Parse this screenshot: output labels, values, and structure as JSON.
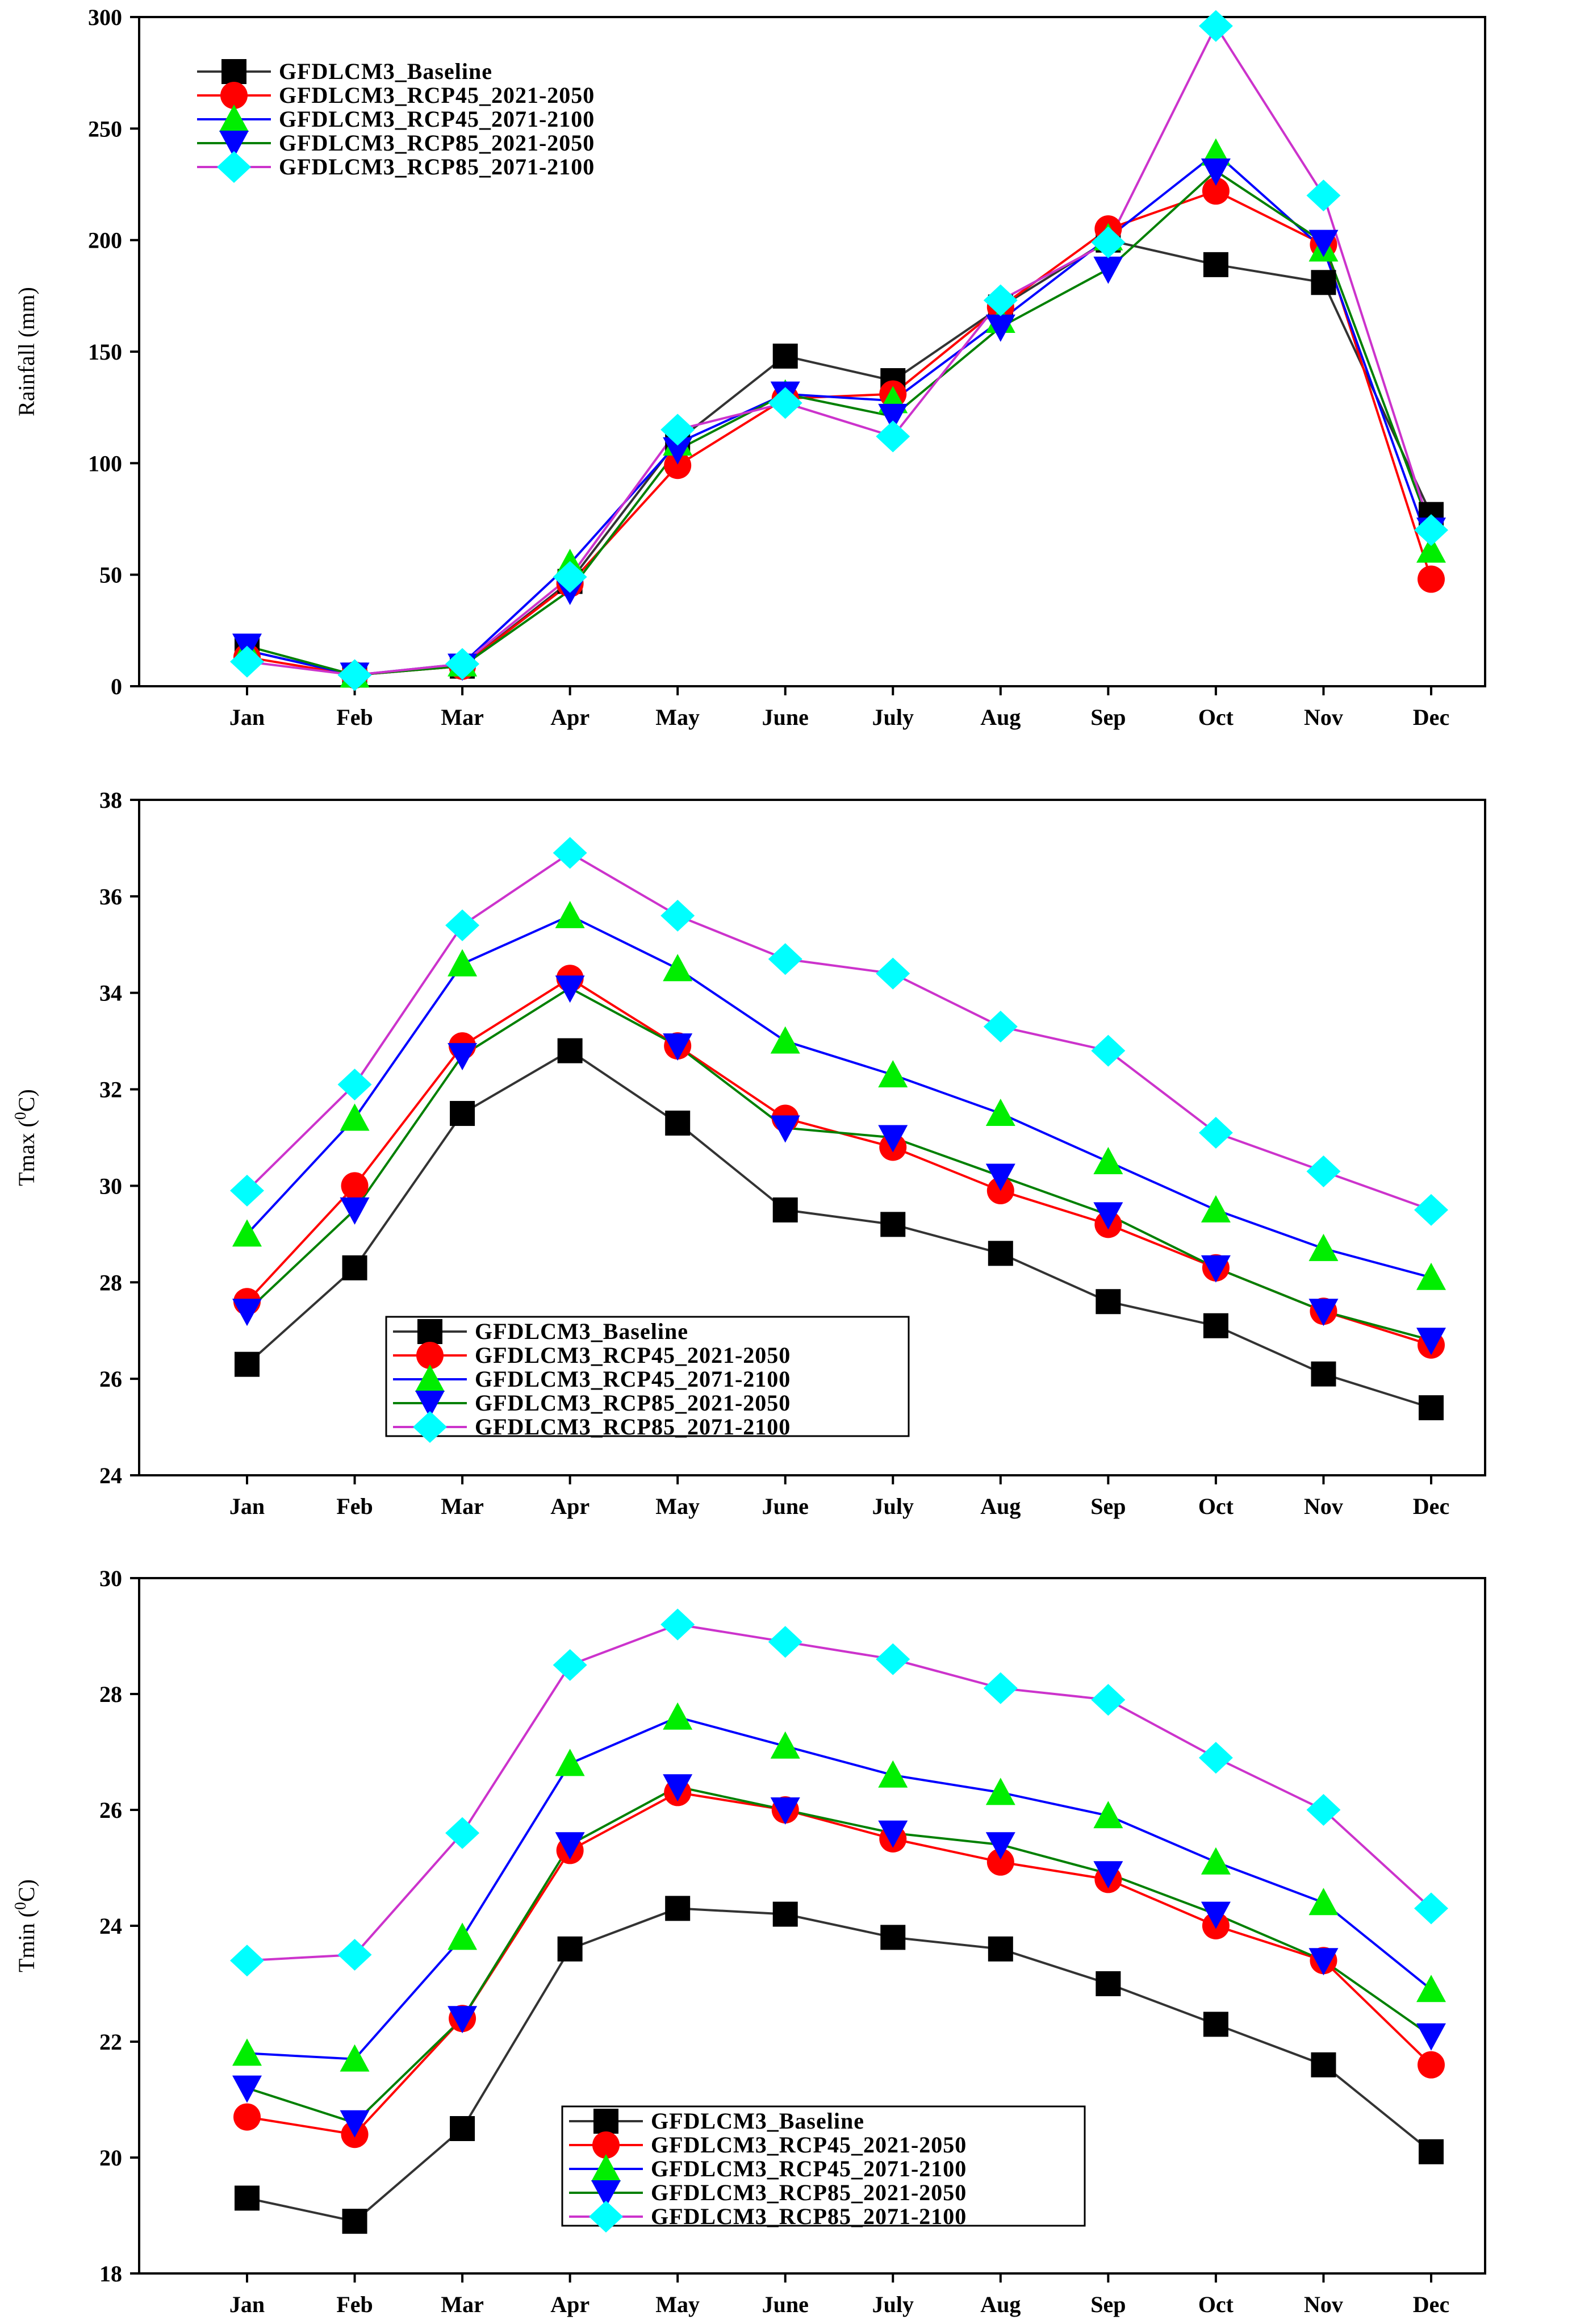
{
  "colors": {
    "baseline": "#000000",
    "rcp45_2050": "#ff0000",
    "rcp45_2100": "#0000ff",
    "rcp85_2050": "#008000",
    "rcp85_2100": "#cc33cc"
  },
  "chart_data": [
    {
      "id": "rainfall",
      "type": "line",
      "title": "",
      "xlabel": "",
      "ylabel": "Rainfall (mm)",
      "ylabel_sup": "",
      "ylabel_suffix": "",
      "ylim": [
        0,
        300
      ],
      "yticks": [
        0,
        50,
        100,
        150,
        200,
        250,
        300
      ],
      "legend_position": "top-left",
      "categories": [
        "Jan",
        "Feb",
        "Mar",
        "Apr",
        "May",
        "June",
        "July",
        "Aug",
        "Sep",
        "Oct",
        "Nov",
        "Dec"
      ],
      "series": [
        {
          "name": "GFDLCM3_Baseline",
          "key": "baseline",
          "marker": "square",
          "marker_color": "#000000",
          "line_color": "#333333",
          "values": [
            16,
            5,
            9,
            47,
            110,
            148,
            137,
            170,
            200,
            189,
            181,
            77
          ]
        },
        {
          "name": "GFDLCM3_RCP45_2021-2050",
          "key": "rcp45_2050",
          "marker": "circle",
          "marker_color": "#ff0000",
          "line_color": "#ff0000",
          "values": [
            13,
            5,
            9,
            46,
            99,
            129,
            131,
            170,
            205,
            222,
            198,
            48
          ]
        },
        {
          "name": "GFDLCM3_RCP45_2071-2100",
          "key": "rcp45_2100",
          "marker": "triangle-up",
          "marker_color": "#00ee00",
          "line_color": "#0000ff",
          "values": [
            16,
            5,
            10,
            55,
            109,
            131,
            128,
            164,
            201,
            239,
            196,
            61
          ]
        },
        {
          "name": "GFDLCM3_RCP85_2021-2050",
          "key": "rcp85_2050",
          "marker": "triangle-down",
          "marker_color": "#0000ff",
          "line_color": "#008000",
          "values": [
            18,
            5,
            9,
            43,
            106,
            131,
            121,
            161,
            187,
            231,
            199,
            70
          ]
        },
        {
          "name": "GFDLCM3_RCP85_2071-2100",
          "key": "rcp85_2100",
          "marker": "diamond",
          "marker_color": "#00ffff",
          "line_color": "#cc33cc",
          "values": [
            11,
            5,
            10,
            49,
            115,
            127,
            112,
            173,
            199,
            296,
            220,
            70
          ]
        }
      ]
    },
    {
      "id": "tmax",
      "type": "line",
      "title": "",
      "xlabel": "",
      "ylabel": "Tmax (",
      "ylabel_sup": "0",
      "ylabel_suffix": "C)",
      "ylim": [
        24,
        38
      ],
      "yticks": [
        24,
        26,
        28,
        30,
        32,
        34,
        36,
        38
      ],
      "legend_position": "bottom-left",
      "categories": [
        "Jan",
        "Feb",
        "Mar",
        "Apr",
        "May",
        "June",
        "July",
        "Aug",
        "Sep",
        "Oct",
        "Nov",
        "Dec"
      ],
      "series": [
        {
          "name": "GFDLCM3_Baseline",
          "key": "baseline",
          "marker": "square",
          "marker_color": "#000000",
          "line_color": "#333333",
          "values": [
            26.3,
            28.3,
            31.5,
            32.8,
            31.3,
            29.5,
            29.2,
            28.6,
            27.6,
            27.1,
            26.1,
            25.4
          ]
        },
        {
          "name": "GFDLCM3_RCP45_2021-2050",
          "key": "rcp45_2050",
          "marker": "circle",
          "marker_color": "#ff0000",
          "line_color": "#ff0000",
          "values": [
            27.6,
            30.0,
            32.9,
            34.3,
            32.9,
            31.4,
            30.8,
            29.9,
            29.2,
            28.3,
            27.4,
            26.7
          ]
        },
        {
          "name": "GFDLCM3_RCP45_2071-2100",
          "key": "rcp45_2100",
          "marker": "triangle-up",
          "marker_color": "#00ee00",
          "line_color": "#0000ff",
          "values": [
            29.0,
            31.4,
            34.6,
            35.6,
            34.5,
            33.0,
            32.3,
            31.5,
            30.5,
            29.5,
            28.7,
            28.1
          ]
        },
        {
          "name": "GFDLCM3_RCP85_2021-2050",
          "key": "rcp85_2050",
          "marker": "triangle-down",
          "marker_color": "#0000ff",
          "line_color": "#008000",
          "values": [
            27.4,
            29.5,
            32.7,
            34.1,
            32.9,
            31.2,
            31.0,
            30.2,
            29.4,
            28.3,
            27.4,
            26.8
          ]
        },
        {
          "name": "GFDLCM3_RCP85_2071-2100",
          "key": "rcp85_2100",
          "marker": "diamond",
          "marker_color": "#00ffff",
          "line_color": "#cc33cc",
          "values": [
            29.9,
            32.1,
            35.4,
            36.9,
            35.6,
            34.7,
            34.4,
            33.3,
            32.8,
            31.1,
            30.3,
            29.5
          ]
        }
      ]
    },
    {
      "id": "tmin",
      "type": "line",
      "title": "",
      "xlabel": "",
      "ylabel": "Tmin (",
      "ylabel_sup": "0",
      "ylabel_suffix": "C)",
      "ylim": [
        18,
        30
      ],
      "yticks": [
        18,
        20,
        22,
        24,
        26,
        28,
        30
      ],
      "legend_position": "bottom-left",
      "categories": [
        "Jan",
        "Feb",
        "Mar",
        "Apr",
        "May",
        "June",
        "July",
        "Aug",
        "Sep",
        "Oct",
        "Nov",
        "Dec"
      ],
      "series": [
        {
          "name": "GFDLCM3_Baseline",
          "key": "baseline",
          "marker": "square",
          "marker_color": "#000000",
          "line_color": "#333333",
          "values": [
            19.3,
            18.9,
            20.5,
            23.6,
            24.3,
            24.2,
            23.8,
            23.6,
            23.0,
            22.3,
            21.6,
            20.1
          ]
        },
        {
          "name": "GFDLCM3_RCP45_2021-2050",
          "key": "rcp45_2050",
          "marker": "circle",
          "marker_color": "#ff0000",
          "line_color": "#ff0000",
          "values": [
            20.7,
            20.4,
            22.4,
            25.3,
            26.3,
            26.0,
            25.5,
            25.1,
            24.8,
            24.0,
            23.4,
            21.6
          ]
        },
        {
          "name": "GFDLCM3_RCP45_2071-2100",
          "key": "rcp45_2100",
          "marker": "triangle-up",
          "marker_color": "#00ee00",
          "line_color": "#0000ff",
          "values": [
            21.8,
            21.7,
            23.8,
            26.8,
            27.6,
            27.1,
            26.6,
            26.3,
            25.9,
            25.1,
            24.4,
            22.9
          ]
        },
        {
          "name": "GFDLCM3_RCP85_2021-2050",
          "key": "rcp85_2050",
          "marker": "triangle-down",
          "marker_color": "#0000ff",
          "line_color": "#008000",
          "values": [
            21.2,
            20.6,
            22.4,
            25.4,
            26.4,
            26.0,
            25.6,
            25.4,
            24.9,
            24.2,
            23.4,
            22.1
          ]
        },
        {
          "name": "GFDLCM3_RCP85_2071-2100",
          "key": "rcp85_2100",
          "marker": "diamond",
          "marker_color": "#00ffff",
          "line_color": "#cc33cc",
          "values": [
            23.4,
            23.5,
            25.6,
            28.5,
            29.2,
            28.9,
            28.6,
            28.1,
            27.9,
            26.9,
            26.0,
            24.3
          ]
        }
      ]
    }
  ]
}
